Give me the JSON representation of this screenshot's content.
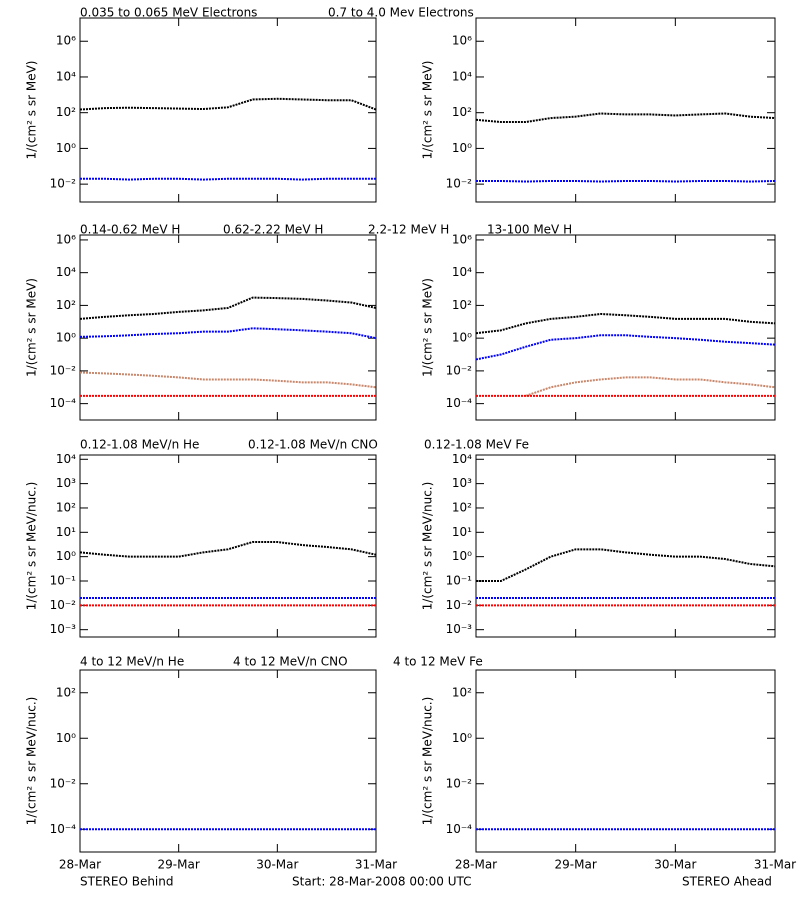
{
  "chart_data": [
    {
      "type": "line",
      "ylog": true,
      "ylabel": "1/(cm² s sr MeV)",
      "xlim": [
        0,
        72
      ],
      "xticks": [
        0,
        24,
        48,
        72
      ],
      "ylim": [
        0.001,
        20000000
      ],
      "yticks": [
        {
          "value": 1000000,
          "label": "10⁶"
        },
        {
          "value": 10000,
          "label": "10⁴"
        },
        {
          "value": 100,
          "label": "10²"
        },
        {
          "value": 1,
          "label": "10⁰"
        },
        {
          "value": 0.01,
          "label": "10⁻²"
        }
      ],
      "x": [
        0,
        6,
        12,
        18,
        24,
        30,
        36,
        42,
        48,
        54,
        60,
        66,
        72
      ],
      "series": [
        {
          "name": "0.035 to 0.065 MeV Electrons",
          "color": "#000000",
          "values": [
            150,
            180,
            190,
            180,
            170,
            160,
            200,
            550,
            600,
            550,
            500,
            500,
            150
          ]
        },
        {
          "name": "0.7 to 4.0 Mev Electrons",
          "color": "#0000ff",
          "values": [
            0.02,
            0.02,
            0.018,
            0.02,
            0.02,
            0.018,
            0.02,
            0.02,
            0.02,
            0.018,
            0.02,
            0.02,
            0.02
          ]
        }
      ]
    },
    {
      "type": "line",
      "ylog": true,
      "ylabel": "1/(cm² s sr MeV)",
      "xlim": [
        0,
        72
      ],
      "xticks": [
        0,
        24,
        48,
        72
      ],
      "ylim": [
        0.001,
        20000000
      ],
      "yticks": [
        {
          "value": 1000000,
          "label": "10⁶"
        },
        {
          "value": 10000,
          "label": "10⁴"
        },
        {
          "value": 100,
          "label": "10²"
        },
        {
          "value": 1,
          "label": "10⁰"
        },
        {
          "value": 0.01,
          "label": "10⁻²"
        }
      ],
      "x": [
        0,
        6,
        12,
        18,
        24,
        30,
        36,
        42,
        48,
        54,
        60,
        66,
        72
      ],
      "series": [
        {
          "color": "#000000",
          "values": [
            40,
            30,
            30,
            50,
            60,
            90,
            80,
            80,
            70,
            80,
            90,
            60,
            50
          ]
        },
        {
          "color": "#0000ff",
          "values": [
            0.015,
            0.015,
            0.014,
            0.015,
            0.015,
            0.014,
            0.015,
            0.015,
            0.014,
            0.015,
            0.015,
            0.014,
            0.015
          ]
        }
      ]
    },
    {
      "type": "line",
      "ylog": true,
      "ylabel": "1/(cm² s sr MeV)",
      "xlim": [
        0,
        72
      ],
      "xticks": [
        0,
        24,
        48,
        72
      ],
      "ylim": [
        1e-05,
        2000000
      ],
      "yticks": [
        {
          "value": 1000000,
          "label": "10⁶"
        },
        {
          "value": 10000,
          "label": "10⁴"
        },
        {
          "value": 100,
          "label": "10²"
        },
        {
          "value": 1,
          "label": "10⁰"
        },
        {
          "value": 0.01,
          "label": "10⁻²"
        },
        {
          "value": 0.0001,
          "label": "10⁻⁴"
        }
      ],
      "x": [
        0,
        6,
        12,
        18,
        24,
        30,
        36,
        42,
        48,
        54,
        60,
        66,
        72
      ],
      "series": [
        {
          "name": "0.14-0.62 MeV H",
          "color": "#000000",
          "values": [
            15,
            20,
            25,
            30,
            40,
            50,
            70,
            300,
            280,
            250,
            200,
            150,
            70
          ]
        },
        {
          "name": "0.62-2.22 MeV H",
          "color": "#0000ff",
          "values": [
            1.2,
            1.3,
            1.5,
            1.8,
            2,
            2.5,
            2.5,
            4,
            3.5,
            3,
            2.5,
            2,
            1
          ]
        },
        {
          "name": "2.2-12 MeV H",
          "color": "#c8866a",
          "values": [
            0.008,
            0.007,
            0.006,
            0.005,
            0.004,
            0.003,
            0.003,
            0.003,
            0.0025,
            0.002,
            0.002,
            0.0015,
            0.001
          ]
        },
        {
          "name": "13-100 MeV H",
          "color": "#ff0000",
          "values": [
            0.0003,
            0.0003,
            0.0003,
            0.0003,
            0.0003,
            0.0003,
            0.0003,
            0.0003,
            0.0003,
            0.0003,
            0.0003,
            0.0003,
            0.0003
          ]
        }
      ]
    },
    {
      "type": "line",
      "ylog": true,
      "ylabel": "1/(cm² s sr MeV)",
      "xlim": [
        0,
        72
      ],
      "xticks": [
        0,
        24,
        48,
        72
      ],
      "ylim": [
        1e-05,
        2000000
      ],
      "yticks": [
        {
          "value": 1000000,
          "label": "10⁶"
        },
        {
          "value": 10000,
          "label": "10⁴"
        },
        {
          "value": 100,
          "label": "10²"
        },
        {
          "value": 1,
          "label": "10⁰"
        },
        {
          "value": 0.01,
          "label": "10⁻²"
        },
        {
          "value": 0.0001,
          "label": "10⁻⁴"
        }
      ],
      "x": [
        0,
        6,
        12,
        18,
        24,
        30,
        36,
        42,
        48,
        54,
        60,
        66,
        72
      ],
      "series": [
        {
          "color": "#000000",
          "values": [
            2,
            3,
            8,
            15,
            20,
            30,
            25,
            20,
            15,
            15,
            15,
            10,
            8
          ]
        },
        {
          "color": "#0000ff",
          "values": [
            0.05,
            0.1,
            0.3,
            0.8,
            1,
            1.5,
            1.5,
            1.2,
            1,
            0.8,
            0.6,
            0.5,
            0.4
          ]
        },
        {
          "color": "#c8866a",
          "values": [
            null,
            null,
            0.0003,
            0.001,
            0.002,
            0.003,
            0.004,
            0.004,
            0.003,
            0.003,
            0.002,
            0.0015,
            0.001
          ]
        },
        {
          "color": "#ff0000",
          "values": [
            0.0003,
            0.0003,
            0.0003,
            0.0003,
            0.0003,
            0.0003,
            0.0003,
            0.0003,
            0.0003,
            0.0003,
            0.0003,
            0.0003,
            0.0003
          ]
        }
      ]
    },
    {
      "type": "line",
      "ylog": true,
      "ylabel": "1/(cm² s sr MeV/nuc.)",
      "xlim": [
        0,
        72
      ],
      "xticks": [
        0,
        24,
        48,
        72
      ],
      "ylim": [
        0.0005,
        15000
      ],
      "yticks": [
        {
          "value": 10000,
          "label": "10⁴"
        },
        {
          "value": 1000,
          "label": "10³"
        },
        {
          "value": 100,
          "label": "10²"
        },
        {
          "value": 10,
          "label": "10¹"
        },
        {
          "value": 1,
          "label": "10⁰"
        },
        {
          "value": 0.1,
          "label": "10⁻¹"
        },
        {
          "value": 0.01,
          "label": "10⁻²"
        },
        {
          "value": 0.001,
          "label": "10⁻³"
        }
      ],
      "x": [
        0,
        6,
        12,
        18,
        24,
        30,
        36,
        42,
        48,
        54,
        60,
        66,
        72
      ],
      "series": [
        {
          "name": "0.12-1.08 MeV/n He",
          "color": "#000000",
          "values": [
            1.5,
            1.2,
            1,
            1,
            1,
            1.5,
            2,
            4,
            4,
            3,
            2.5,
            2,
            1.2
          ]
        },
        {
          "name": "0.12-1.08 MeV/n CNO",
          "color": "#0000ff",
          "values": [
            0.02,
            0.02,
            0.02,
            0.02,
            0.02,
            0.02,
            0.02,
            0.02,
            0.02,
            0.02,
            0.02,
            0.02,
            0.02
          ]
        },
        {
          "name": "0.12-1.08 MeV Fe",
          "color": "#ff0000",
          "values": [
            0.01,
            0.01,
            0.01,
            0.01,
            0.01,
            0.01,
            0.01,
            0.01,
            0.01,
            0.01,
            0.01,
            0.01,
            0.01
          ]
        }
      ]
    },
    {
      "type": "line",
      "ylog": true,
      "ylabel": "1/(cm² s sr MeV/nuc.)",
      "xlim": [
        0,
        72
      ],
      "xticks": [
        0,
        24,
        48,
        72
      ],
      "ylim": [
        0.0005,
        15000
      ],
      "yticks": [
        {
          "value": 10000,
          "label": "10⁴"
        },
        {
          "value": 1000,
          "label": "10³"
        },
        {
          "value": 100,
          "label": "10²"
        },
        {
          "value": 10,
          "label": "10¹"
        },
        {
          "value": 1,
          "label": "10⁰"
        },
        {
          "value": 0.1,
          "label": "10⁻¹"
        },
        {
          "value": 0.01,
          "label": "10⁻²"
        },
        {
          "value": 0.001,
          "label": "10⁻³"
        }
      ],
      "x": [
        0,
        6,
        12,
        18,
        24,
        30,
        36,
        42,
        48,
        54,
        60,
        66,
        72
      ],
      "series": [
        {
          "color": "#000000",
          "values": [
            0.1,
            0.1,
            0.3,
            1,
            2,
            2,
            1.5,
            1.2,
            1,
            1,
            0.8,
            0.5,
            0.4
          ]
        },
        {
          "color": "#0000ff",
          "values": [
            0.02,
            0.02,
            0.02,
            0.02,
            0.02,
            0.02,
            0.02,
            0.02,
            0.02,
            0.02,
            0.02,
            0.02,
            0.02
          ]
        },
        {
          "color": "#ff0000",
          "values": [
            0.01,
            0.01,
            0.01,
            0.01,
            0.01,
            0.01,
            0.01,
            0.01,
            0.01,
            0.01,
            0.01,
            0.01,
            0.01
          ]
        }
      ]
    },
    {
      "type": "line",
      "ylog": true,
      "ylabel": "1/(cm² s sr MeV/nuc.)",
      "xlim": [
        0,
        72
      ],
      "xticks": [
        {
          "value": 0,
          "label": "28-Mar"
        },
        {
          "value": 24,
          "label": "29-Mar"
        },
        {
          "value": 48,
          "label": "30-Mar"
        },
        {
          "value": 72,
          "label": "31-Mar"
        }
      ],
      "ylim": [
        1e-05,
        1000
      ],
      "yticks": [
        {
          "value": 100,
          "label": "10²"
        },
        {
          "value": 1,
          "label": "10⁰"
        },
        {
          "value": 0.01,
          "label": "10⁻²"
        },
        {
          "value": 0.0001,
          "label": "10⁻⁴"
        }
      ],
      "x": [
        0,
        6,
        12,
        18,
        24,
        30,
        36,
        42,
        48,
        54,
        60,
        66,
        72
      ],
      "series": [
        {
          "name": "4 to 12 MeV/n He",
          "color": "#000000",
          "values": [
            null,
            null,
            null,
            null,
            null,
            null,
            null,
            null,
            null,
            null,
            null,
            null,
            null
          ]
        },
        {
          "name": "4 to 12 MeV/n CNO",
          "color": "#0000ff",
          "values": [
            0.0001,
            0.0001,
            0.0001,
            0.0001,
            0.0001,
            0.0001,
            0.0001,
            0.0001,
            0.0001,
            0.0001,
            0.0001,
            0.0001,
            0.0001
          ]
        },
        {
          "name": "4 to 12 MeV Fe",
          "color": "#ff0000",
          "values": [
            null,
            null,
            null,
            null,
            null,
            null,
            null,
            null,
            null,
            null,
            null,
            null,
            null
          ]
        }
      ]
    },
    {
      "type": "line",
      "ylog": true,
      "ylabel": "1/(cm² s sr MeV/nuc.)",
      "xlim": [
        0,
        72
      ],
      "xticks": [
        {
          "value": 0,
          "label": "28-Mar"
        },
        {
          "value": 24,
          "label": "29-Mar"
        },
        {
          "value": 48,
          "label": "30-Mar"
        },
        {
          "value": 72,
          "label": "31-Mar"
        }
      ],
      "ylim": [
        1e-05,
        1000
      ],
      "yticks": [
        {
          "value": 100,
          "label": "10²"
        },
        {
          "value": 1,
          "label": "10⁰"
        },
        {
          "value": 0.01,
          "label": "10⁻²"
        },
        {
          "value": 0.0001,
          "label": "10⁻⁴"
        }
      ],
      "x": [
        0,
        6,
        12,
        18,
        24,
        30,
        36,
        42,
        48,
        54,
        60,
        66,
        72
      ],
      "series": [
        {
          "color": "#0000ff",
          "values": [
            0.0001,
            0.0001,
            0.0001,
            0.0001,
            0.0001,
            0.0001,
            0.0001,
            0.0001,
            0.0001,
            0.0001,
            0.0001,
            0.0001,
            0.0001
          ]
        }
      ]
    }
  ],
  "footer": {
    "left": "STEREO Behind",
    "center": "Start: 28-Mar-2008 00:00 UTC",
    "right": "STEREO Ahead"
  }
}
